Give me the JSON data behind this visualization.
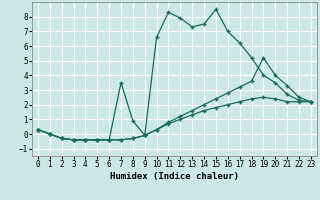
{
  "xlabel": "Humidex (Indice chaleur)",
  "bg_color": "#cce8e6",
  "grid_color": "#ffffff",
  "line_color": "#1a6b5a",
  "xlim": [
    -0.5,
    23.5
  ],
  "ylim": [
    -1.5,
    9.0
  ],
  "xticks": [
    0,
    1,
    2,
    3,
    4,
    5,
    6,
    7,
    8,
    9,
    10,
    11,
    12,
    13,
    14,
    15,
    16,
    17,
    18,
    19,
    20,
    21,
    22,
    23
  ],
  "yticks": [
    -1,
    0,
    1,
    2,
    3,
    4,
    5,
    6,
    7,
    8
  ],
  "line1_x": [
    0,
    1,
    2,
    3,
    4,
    5,
    6,
    7,
    8,
    9,
    10,
    11,
    12,
    13,
    14,
    15,
    16,
    17,
    18,
    19,
    20,
    21,
    22,
    23
  ],
  "line1_y": [
    0.3,
    0.0,
    -0.3,
    -0.4,
    -0.4,
    -0.4,
    -0.4,
    -0.4,
    -0.3,
    -0.1,
    0.3,
    0.7,
    1.0,
    1.3,
    1.6,
    1.8,
    2.0,
    2.2,
    2.4,
    2.5,
    2.4,
    2.2,
    2.2,
    2.2
  ],
  "line2_x": [
    0,
    1,
    2,
    3,
    4,
    5,
    6,
    7,
    8,
    9,
    10,
    11,
    12,
    13,
    14,
    15,
    16,
    17,
    18,
    19,
    20,
    21,
    22,
    23
  ],
  "line2_y": [
    0.3,
    0.0,
    -0.3,
    -0.4,
    -0.4,
    -0.4,
    -0.4,
    3.5,
    0.9,
    -0.1,
    6.6,
    8.3,
    7.9,
    7.3,
    7.5,
    8.5,
    7.0,
    6.2,
    5.2,
    4.0,
    3.5,
    2.7,
    2.3,
    2.2
  ],
  "line3_x": [
    0,
    1,
    2,
    3,
    4,
    5,
    6,
    7,
    8,
    9,
    10,
    11,
    12,
    13,
    14,
    15,
    16,
    17,
    18,
    19,
    20,
    21,
    22,
    23
  ],
  "line3_y": [
    0.3,
    0.0,
    -0.3,
    -0.4,
    -0.4,
    -0.4,
    -0.4,
    -0.4,
    -0.3,
    -0.1,
    0.3,
    0.8,
    1.2,
    1.6,
    2.0,
    2.4,
    2.8,
    3.2,
    3.6,
    5.2,
    4.0,
    3.3,
    2.5,
    2.2
  ]
}
